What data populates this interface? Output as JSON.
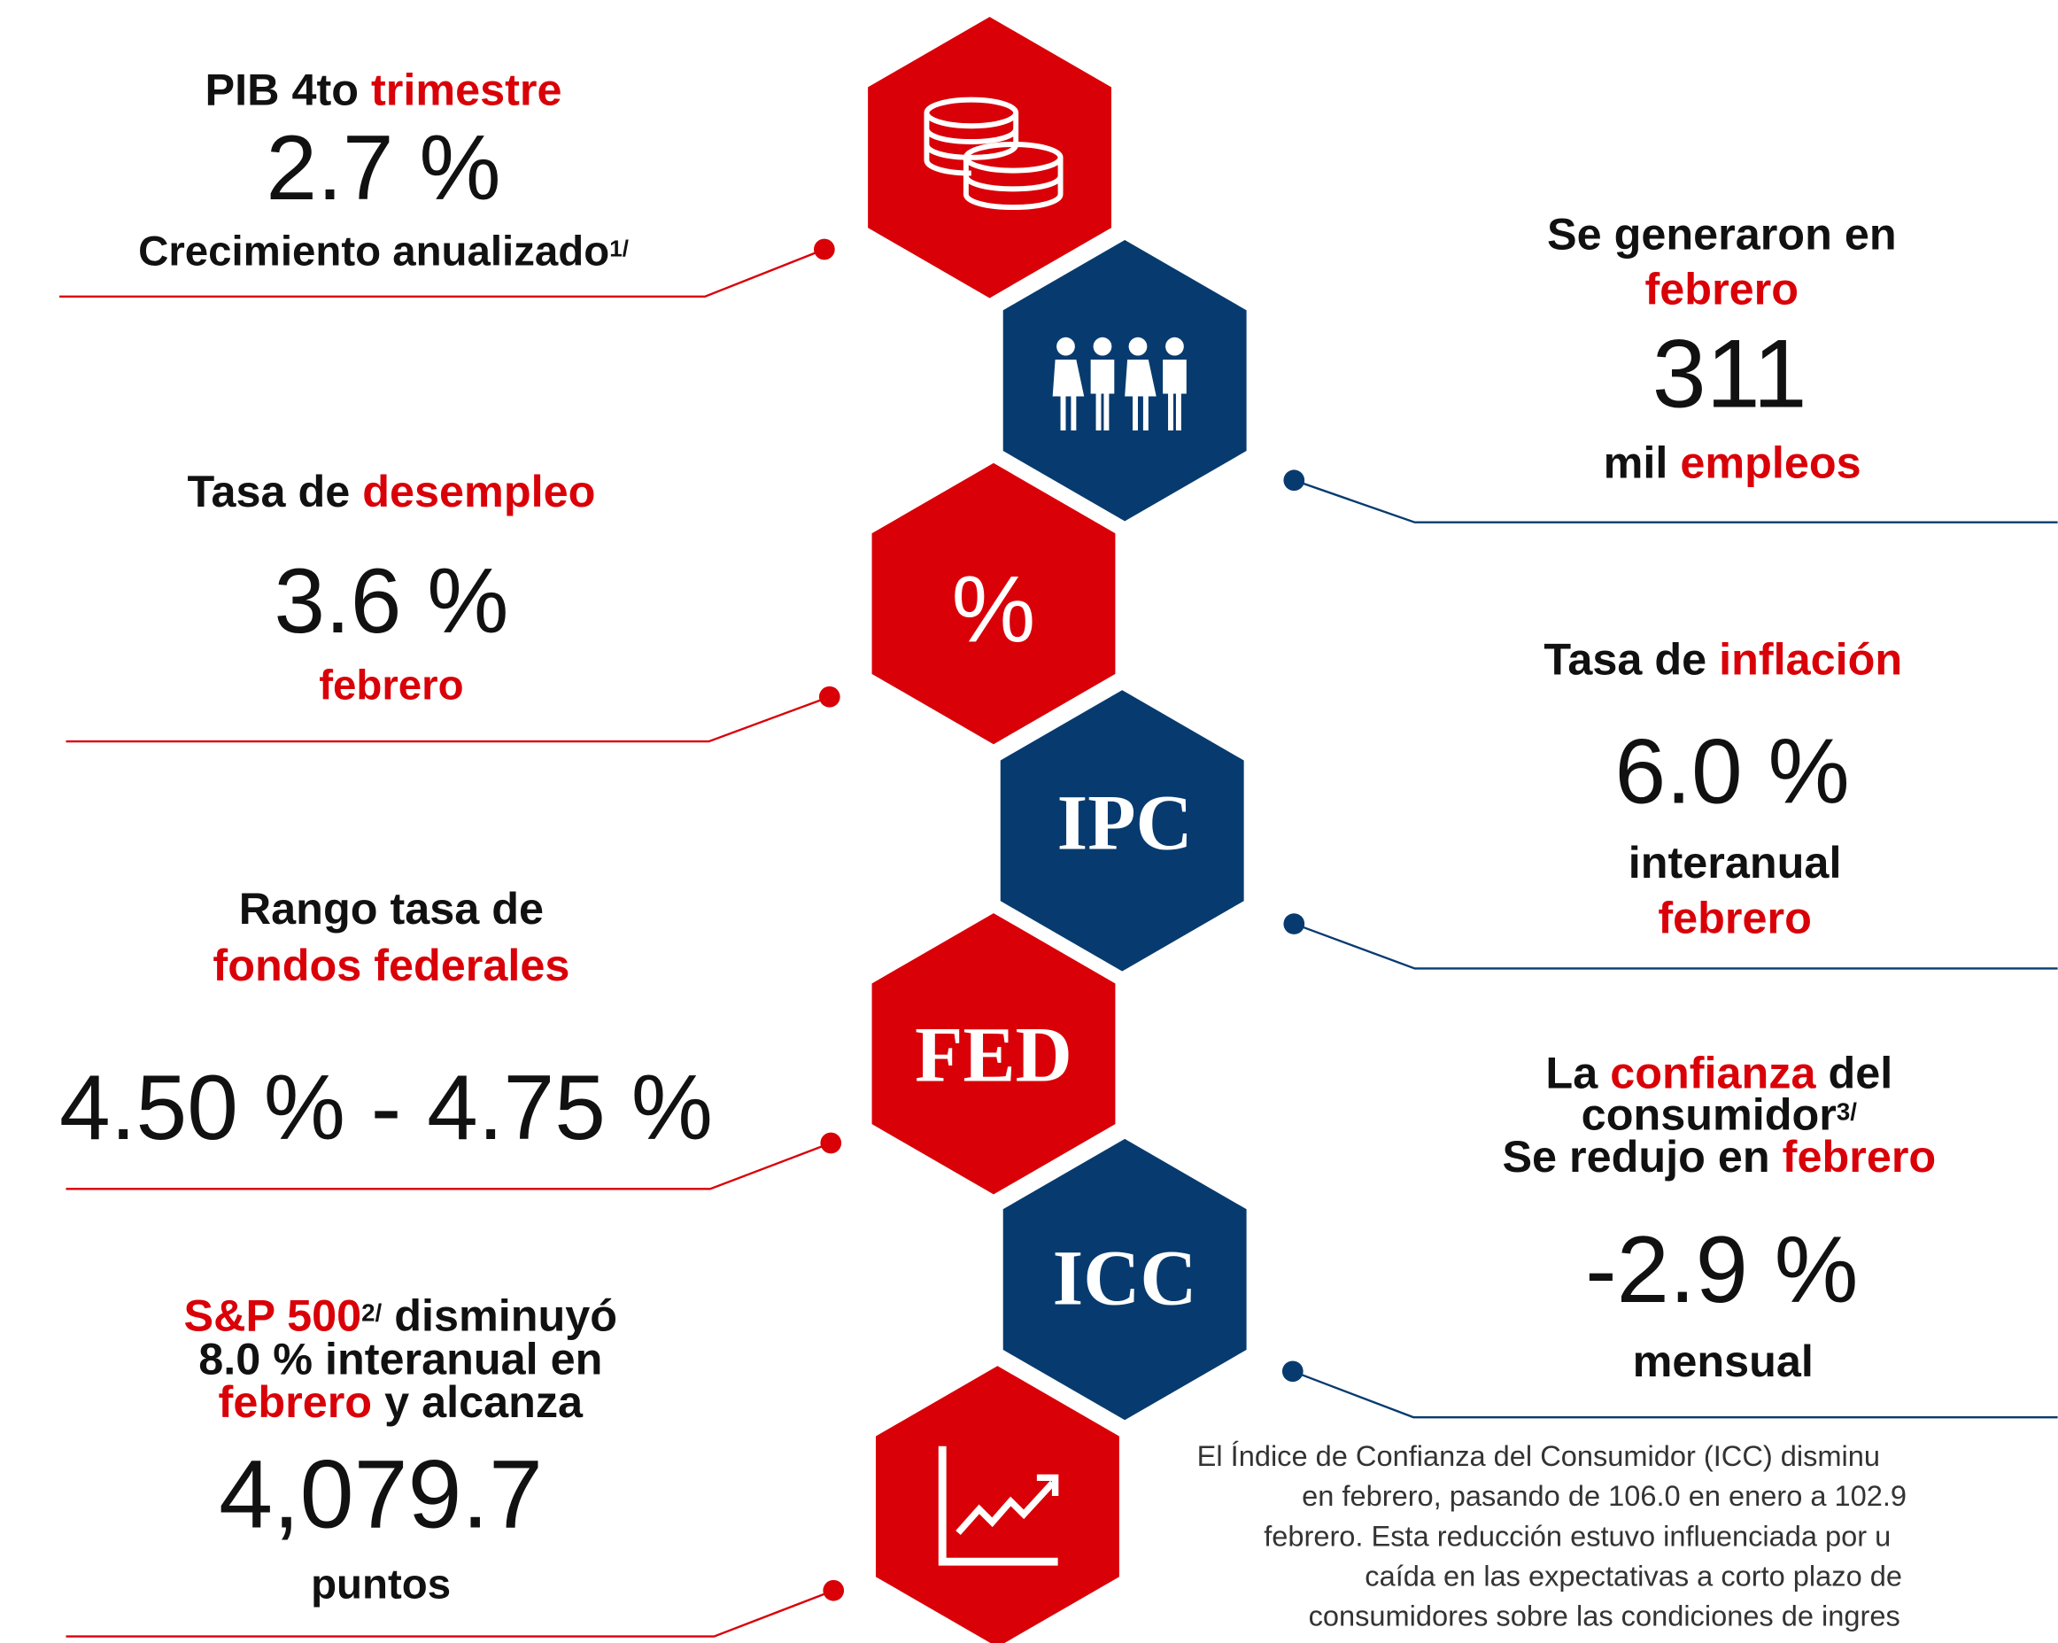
{
  "left": [
    {
      "heading": [
        [
          {
            "text": "PIB 4to "
          },
          {
            "text": "trimestre",
            "accent": true
          }
        ]
      ],
      "value": "2.7 %",
      "caption": [
        [
          {
            "text": "Crecimiento anualizado"
          },
          {
            "text": "1/",
            "sup": true
          }
        ]
      ]
    },
    {
      "heading": [
        [
          {
            "text": "Tasa de "
          },
          {
            "text": "desempleo",
            "accent": true
          }
        ]
      ],
      "value": "3.6 %",
      "caption": [
        [
          {
            "text": "febrero",
            "accent": true
          }
        ]
      ]
    },
    {
      "heading": [
        [
          {
            "text": "Rango tasa de"
          }
        ],
        [
          {
            "text": "fondos federales",
            "accent": true
          }
        ]
      ],
      "value": "4.50 % - 4.75 %",
      "caption": []
    },
    {
      "heading": [
        [
          {
            "text": "S&P 500",
            "accent": true
          },
          {
            "text": "2/",
            "sup": true
          },
          {
            "text": " disminuyó"
          }
        ],
        [
          {
            "text": "8.0 % interanual en"
          }
        ],
        [
          {
            "text": "febrero",
            "accent": true
          },
          {
            "text": " y alcanza"
          }
        ]
      ],
      "value": "4,079.7",
      "caption": [
        [
          {
            "text": "puntos"
          }
        ]
      ]
    }
  ],
  "right": [
    {
      "heading": [
        [
          {
            "text": "Se generaron en"
          }
        ],
        [
          {
            "text": "febrero",
            "accent": true
          }
        ]
      ],
      "value": "311",
      "caption": [
        [
          {
            "text": "mil "
          },
          {
            "text": "empleos",
            "accent": true
          }
        ]
      ]
    },
    {
      "heading": [
        [
          {
            "text": "Tasa de "
          },
          {
            "text": "inflación",
            "accent": true
          }
        ]
      ],
      "value": "6.0 %",
      "caption": [
        [
          {
            "text": "interanual"
          }
        ],
        [
          {
            "text": "febrero",
            "accent": true
          }
        ]
      ]
    },
    {
      "heading": [
        [
          {
            "text": "La "
          },
          {
            "text": "confianza",
            "accent": true
          },
          {
            "text": " del"
          }
        ],
        [
          {
            "text": "consumidor"
          },
          {
            "text": "3/",
            "sup": true
          }
        ],
        [
          {
            "text": "Se redujo en "
          },
          {
            "text": "febrero",
            "accent": true
          }
        ]
      ],
      "value": "-2.9 %",
      "caption": [
        [
          {
            "text": "mensual"
          }
        ]
      ]
    }
  ],
  "hexagons": {
    "labels": [
      "%",
      "IPC",
      "FED",
      "ICC"
    ]
  },
  "note": [
    "El Índice de Confianza del Consumidor (ICC) disminu",
    "en febrero, pasando de 106.0 en enero a 102.9",
    "febrero. Esta reducción estuvo influenciada por u",
    "caída en las expectativas a corto plazo de",
    "consumidores sobre las condiciones de ingres"
  ]
}
